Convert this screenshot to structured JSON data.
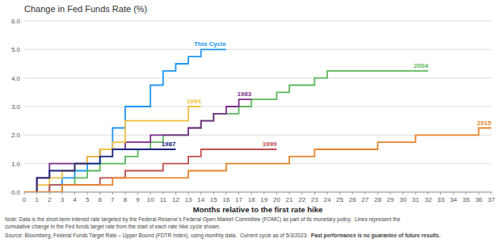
{
  "chart_data": {
    "type": "line",
    "line_style": "step",
    "title": "Change in Fed Funds Rate (%)",
    "x_label": "Months relative to the first rate hike",
    "notes": [
      "Note: Data is the short-term interest rate targeted by the Federal Reserve’s Federal Open Market Committee (FOMC) as part of its monetary policy.  Lines represent the",
      "cumulative change in the Fed funds target rate from the start of each rate hike cycle shown."
    ],
    "source": "Source: Bloomberg, Federal Funds Target Rate – Upper Bound (FDTR Index), using monthly data.  Current cycle as of 5/3/2023.  ",
    "disclaimer": "Past performance is no guarantee of future results.",
    "xlim": [
      0,
      37
    ],
    "ylim": [
      0.0,
      6.0
    ],
    "xticks": [
      0,
      1,
      2,
      3,
      4,
      5,
      6,
      7,
      8,
      9,
      10,
      11,
      12,
      13,
      14,
      15,
      16,
      17,
      18,
      19,
      20,
      21,
      22,
      23,
      24,
      25,
      26,
      27,
      28,
      29,
      30,
      31,
      32,
      33,
      34,
      35,
      36,
      37
    ],
    "yticks": [
      {
        "value": 0.0,
        "label": "0.0"
      },
      {
        "value": 1.0,
        "label": "1.0"
      },
      {
        "value": 2.0,
        "label": "2.0"
      },
      {
        "value": 3.0,
        "label": "3.0"
      },
      {
        "value": 4.0,
        "label": "4.0"
      },
      {
        "value": 5.0,
        "label": "5.0"
      },
      {
        "value": 6.0,
        "label": "6.0"
      }
    ],
    "grid": true,
    "series": [
      {
        "name": "This Cycle",
        "color": "#2196F3",
        "x": [
          0,
          1,
          2,
          3,
          4,
          5,
          6,
          7,
          8,
          9,
          10,
          11,
          12,
          13,
          14,
          15,
          16
        ],
        "values": [
          0,
          0,
          0.25,
          0.5,
          0.75,
          1.0,
          1.5,
          2.25,
          3.0,
          3.0,
          3.75,
          4.25,
          4.5,
          4.75,
          5.0,
          5.0,
          5.0
        ]
      },
      {
        "name": "2004",
        "color": "#5CB85C",
        "x": [
          0,
          1,
          2,
          3,
          4,
          5,
          6,
          7,
          8,
          9,
          10,
          11,
          12,
          13,
          14,
          15,
          16,
          17,
          18,
          19,
          20,
          21,
          22,
          23,
          24,
          25,
          26,
          27,
          28,
          29,
          30,
          31,
          32
        ],
        "values": [
          0,
          0,
          0,
          0.25,
          0.5,
          0.75,
          1.0,
          1.0,
          1.25,
          1.5,
          1.75,
          2.0,
          2.0,
          2.25,
          2.5,
          2.75,
          2.75,
          3.0,
          3.25,
          3.25,
          3.5,
          3.75,
          3.75,
          4.0,
          4.25,
          4.25,
          4.25,
          4.25,
          4.25,
          4.25,
          4.25,
          4.25,
          4.25
        ]
      },
      {
        "name": "1983",
        "color": "#7B2D8B",
        "x": [
          0,
          1,
          2,
          3,
          4,
          5,
          6,
          7,
          8,
          9,
          10,
          11,
          12,
          13,
          14,
          15,
          16,
          17,
          18
        ],
        "values": [
          0,
          0.5,
          1.0,
          1.0,
          1.0,
          1.25,
          1.5,
          1.5,
          1.75,
          1.75,
          2.0,
          2.0,
          2.0,
          2.25,
          2.5,
          2.75,
          3.0,
          3.25,
          3.25
        ]
      },
      {
        "name": "1994",
        "color": "#F0C040",
        "x": [
          0,
          1,
          2,
          3,
          4,
          5,
          6,
          7,
          8,
          9,
          10,
          11,
          12,
          13,
          14
        ],
        "values": [
          0,
          0.25,
          0.5,
          0.75,
          1.0,
          1.25,
          1.5,
          1.75,
          2.5,
          2.5,
          2.5,
          2.5,
          2.5,
          3.0,
          3.0
        ]
      },
      {
        "name": "1987",
        "color": "#1A237E",
        "x": [
          0,
          1,
          2,
          3,
          4,
          5,
          6,
          7,
          8,
          9,
          10,
          11,
          12
        ],
        "values": [
          0,
          0.5,
          0.75,
          0.75,
          1.0,
          1.0,
          1.25,
          1.5,
          1.5,
          1.5,
          1.5,
          1.5,
          1.5
        ]
      },
      {
        "name": "1999",
        "color": "#C0504D",
        "x": [
          0,
          1,
          2,
          3,
          4,
          5,
          6,
          7,
          8,
          9,
          10,
          11,
          12,
          13,
          14,
          15,
          16,
          17,
          18,
          19,
          20
        ],
        "values": [
          0,
          0,
          0.25,
          0.25,
          0.25,
          0.25,
          0.5,
          0.5,
          0.75,
          0.75,
          0.75,
          1.0,
          1.0,
          1.25,
          1.5,
          1.5,
          1.5,
          1.5,
          1.5,
          1.5,
          1.5
        ]
      },
      {
        "name": "2015",
        "color": "#E8842C",
        "x": [
          0,
          1,
          2,
          3,
          4,
          5,
          6,
          7,
          8,
          9,
          10,
          11,
          12,
          13,
          14,
          15,
          16,
          17,
          18,
          19,
          20,
          21,
          22,
          23,
          24,
          25,
          26,
          27,
          28,
          29,
          30,
          31,
          32,
          33,
          34,
          35,
          36,
          37
        ],
        "values": [
          0,
          0,
          0,
          0.25,
          0.25,
          0.25,
          0.25,
          0.5,
          0.5,
          0.5,
          0.5,
          0.5,
          0.5,
          0.75,
          0.75,
          0.75,
          1.0,
          1.0,
          1.0,
          1.0,
          1.0,
          1.25,
          1.25,
          1.5,
          1.5,
          1.5,
          1.5,
          1.5,
          1.75,
          1.75,
          1.75,
          2.0,
          2.0,
          2.0,
          2.0,
          2.0,
          2.25,
          2.25
        ]
      }
    ]
  }
}
